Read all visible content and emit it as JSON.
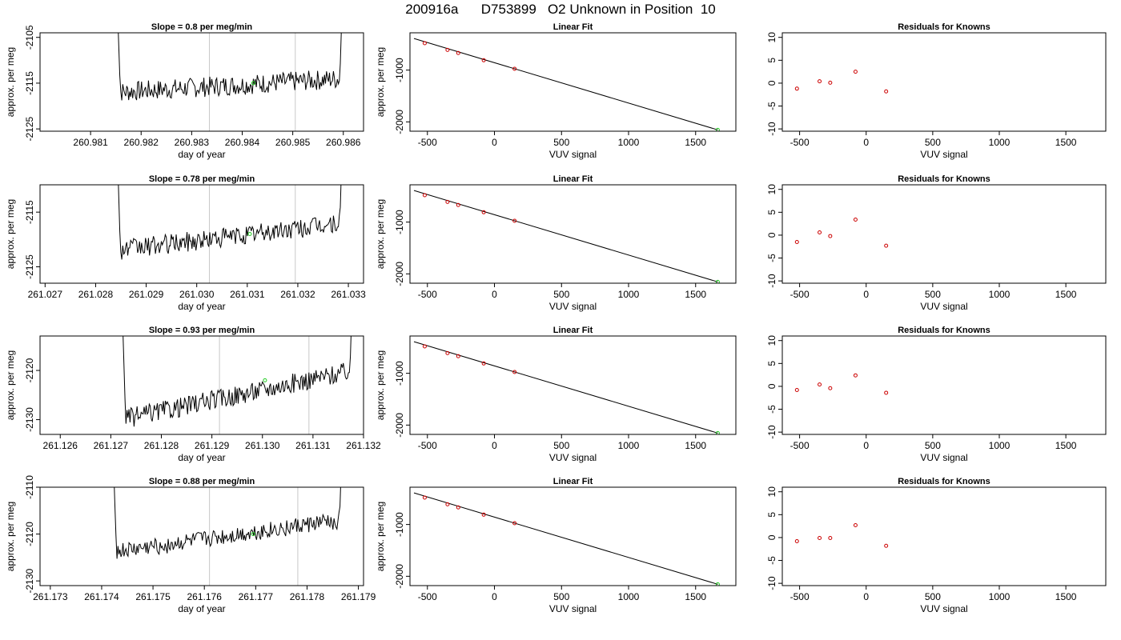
{
  "title": "200916a      D753899   O2 Unknown in Position  10",
  "colors": {
    "line": "#000000",
    "known_points": "#cc0000",
    "unknown_point": "#22cc22",
    "vline": "#c8c8c8"
  },
  "labels": {
    "ts_title_prefix": "Slope =  ",
    "ts_title_suffix": "  per meg/min",
    "ts_xlabel": "day of year",
    "ylabel": "approx. per meg",
    "fit_title": "Linear Fit",
    "res_title": "Residuals for Knowns",
    "vuv_xlabel": "VUV signal"
  },
  "chart_data": [
    {
      "type": "line",
      "row": 1,
      "slope": "0.8",
      "xlim": [
        260.98,
        260.9864
      ],
      "ylim": [
        -2125.5,
        -2104
      ],
      "xticks": [
        "260.981",
        "260.982",
        "260.983",
        "260.984",
        "260.985",
        "260.986"
      ],
      "yticks": [
        "-2105",
        "-2115",
        "-2125"
      ],
      "start": 260.9815,
      "end": 260.986,
      "vlines": [
        260.98335,
        260.98505
      ],
      "level_start": -2117,
      "level_end": -2114,
      "noise": 2.2,
      "unknown_point": {
        "x": 260.98422,
        "y": -2115
      }
    },
    {
      "type": "scatter",
      "row": 1,
      "fit": true,
      "xlim": [
        -630,
        1800
      ],
      "ylim": [
        -2180,
        -280
      ],
      "xticks": [
        "-500",
        "0",
        "500",
        "1000",
        "1500"
      ],
      "yticks": [
        "-1000",
        "-2000"
      ],
      "knowns": [
        [
          -520,
          -480
        ],
        [
          -350,
          -610
        ],
        [
          -270,
          -670
        ],
        [
          -80,
          -810
        ],
        [
          150,
          -975
        ]
      ],
      "unknown": [
        1665,
        -2155
      ],
      "line": [
        [
          -600,
          -390
        ],
        [
          1665,
          -2155
        ]
      ]
    },
    {
      "type": "scatter",
      "row": 1,
      "fit": false,
      "xlim": [
        -630,
        1800
      ],
      "ylim": [
        -10.5,
        11
      ],
      "xticks": [
        "-500",
        "0",
        "500",
        "1000",
        "1500"
      ],
      "yticks": [
        "10",
        "5",
        "0",
        "-5",
        "-10"
      ],
      "knowns": [
        [
          -520,
          -1.2
        ],
        [
          -350,
          0.4
        ],
        [
          -270,
          0.1
        ],
        [
          -80,
          2.5
        ],
        [
          150,
          -1.8
        ]
      ]
    },
    {
      "type": "line",
      "row": 2,
      "slope": "0.78",
      "xlim": [
        261.0269,
        261.0333
      ],
      "ylim": [
        -2128,
        -2110
      ],
      "xticks": [
        "261.027",
        "261.028",
        "261.029",
        "261.030",
        "261.031",
        "261.032",
        "261.033"
      ],
      "yticks": [
        "-2115",
        "-2125"
      ],
      "start": 261.0284,
      "end": 261.0329,
      "vlines": [
        261.03025,
        261.03195
      ],
      "level_start": -2122,
      "level_end": -2117,
      "noise": 1.8,
      "unknown_point": {
        "x": 261.03105,
        "y": -2119
      }
    },
    {
      "type": "scatter",
      "row": 2,
      "fit": true,
      "xlim": [
        -630,
        1800
      ],
      "ylim": [
        -2180,
        -280
      ],
      "xticks": [
        "-500",
        "0",
        "500",
        "1000",
        "1500"
      ],
      "yticks": [
        "-1000",
        "-2000"
      ],
      "knowns": [
        [
          -520,
          -480
        ],
        [
          -350,
          -610
        ],
        [
          -270,
          -670
        ],
        [
          -80,
          -810
        ],
        [
          150,
          -975
        ]
      ],
      "unknown": [
        1665,
        -2155
      ],
      "line": [
        [
          -600,
          -390
        ],
        [
          1665,
          -2155
        ]
      ]
    },
    {
      "type": "scatter",
      "row": 2,
      "fit": false,
      "xlim": [
        -630,
        1800
      ],
      "ylim": [
        -10.5,
        11
      ],
      "xticks": [
        "-500",
        "0",
        "500",
        "1000",
        "1500"
      ],
      "yticks": [
        "10",
        "5",
        "0",
        "-5",
        "-10"
      ],
      "knowns": [
        [
          -520,
          -1.5
        ],
        [
          -350,
          0.6
        ],
        [
          -270,
          -0.2
        ],
        [
          -80,
          3.4
        ],
        [
          150,
          -2.3
        ]
      ]
    },
    {
      "type": "line",
      "row": 3,
      "slope": "0.93",
      "xlim": [
        261.1256,
        261.132
      ],
      "ylim": [
        -2133,
        -2113
      ],
      "xticks": [
        "261.126",
        "261.127",
        "261.128",
        "261.129",
        "261.130",
        "261.131",
        "261.132"
      ],
      "yticks": [
        "-2120",
        "-2130"
      ],
      "start": 261.1272,
      "end": 261.1318,
      "vlines": [
        261.12915,
        261.13092
      ],
      "level_start": -2130,
      "level_end": -2120,
      "noise": 2.0,
      "unknown_point": {
        "x": 261.13005,
        "y": -2122
      }
    },
    {
      "type": "scatter",
      "row": 3,
      "fit": true,
      "xlim": [
        -630,
        1800
      ],
      "ylim": [
        -2180,
        -280
      ],
      "xticks": [
        "-500",
        "0",
        "500",
        "1000",
        "1500"
      ],
      "yticks": [
        "-1000",
        "-2000"
      ],
      "knowns": [
        [
          -520,
          -480
        ],
        [
          -350,
          -610
        ],
        [
          -270,
          -670
        ],
        [
          -80,
          -810
        ],
        [
          150,
          -975
        ]
      ],
      "unknown": [
        1665,
        -2155
      ],
      "line": [
        [
          -600,
          -390
        ],
        [
          1665,
          -2155
        ]
      ]
    },
    {
      "type": "scatter",
      "row": 3,
      "fit": false,
      "xlim": [
        -630,
        1800
      ],
      "ylim": [
        -10.5,
        11
      ],
      "xticks": [
        "-500",
        "0",
        "500",
        "1000",
        "1500"
      ],
      "yticks": [
        "10",
        "5",
        "0",
        "-5",
        "-10"
      ],
      "knowns": [
        [
          -520,
          -0.8
        ],
        [
          -350,
          0.4
        ],
        [
          -270,
          -0.4
        ],
        [
          -80,
          2.4
        ],
        [
          150,
          -1.4
        ]
      ]
    },
    {
      "type": "line",
      "row": 4,
      "slope": "0.88",
      "xlim": [
        261.1728,
        261.1791
      ],
      "ylim": [
        -2131,
        -2110
      ],
      "xticks": [
        "261.173",
        "261.174",
        "261.175",
        "261.176",
        "261.177",
        "261.178",
        "261.179"
      ],
      "yticks": [
        "-2110",
        "-2120",
        "-2130"
      ],
      "start": 261.1742,
      "end": 261.1787,
      "vlines": [
        261.1761,
        261.17782
      ],
      "level_start": -2124,
      "level_end": -2117,
      "noise": 1.8,
      "unknown_point": {
        "x": 261.17695,
        "y": -2120
      }
    },
    {
      "type": "scatter",
      "row": 4,
      "fit": true,
      "xlim": [
        -630,
        1800
      ],
      "ylim": [
        -2180,
        -280
      ],
      "xticks": [
        "-500",
        "0",
        "500",
        "1000",
        "1500"
      ],
      "yticks": [
        "-1000",
        "-2000"
      ],
      "knowns": [
        [
          -520,
          -480
        ],
        [
          -350,
          -610
        ],
        [
          -270,
          -670
        ],
        [
          -80,
          -810
        ],
        [
          150,
          -975
        ]
      ],
      "unknown": [
        1665,
        -2155
      ],
      "line": [
        [
          -600,
          -390
        ],
        [
          1665,
          -2155
        ]
      ]
    },
    {
      "type": "scatter",
      "row": 4,
      "fit": false,
      "xlim": [
        -630,
        1800
      ],
      "ylim": [
        -10.5,
        11
      ],
      "xticks": [
        "-500",
        "0",
        "500",
        "1000",
        "1500"
      ],
      "yticks": [
        "10",
        "5",
        "0",
        "-5",
        "-10"
      ],
      "knowns": [
        [
          -520,
          -0.8
        ],
        [
          -350,
          -0.1
        ],
        [
          -270,
          -0.1
        ],
        [
          -80,
          2.7
        ],
        [
          150,
          -1.8
        ]
      ]
    }
  ]
}
